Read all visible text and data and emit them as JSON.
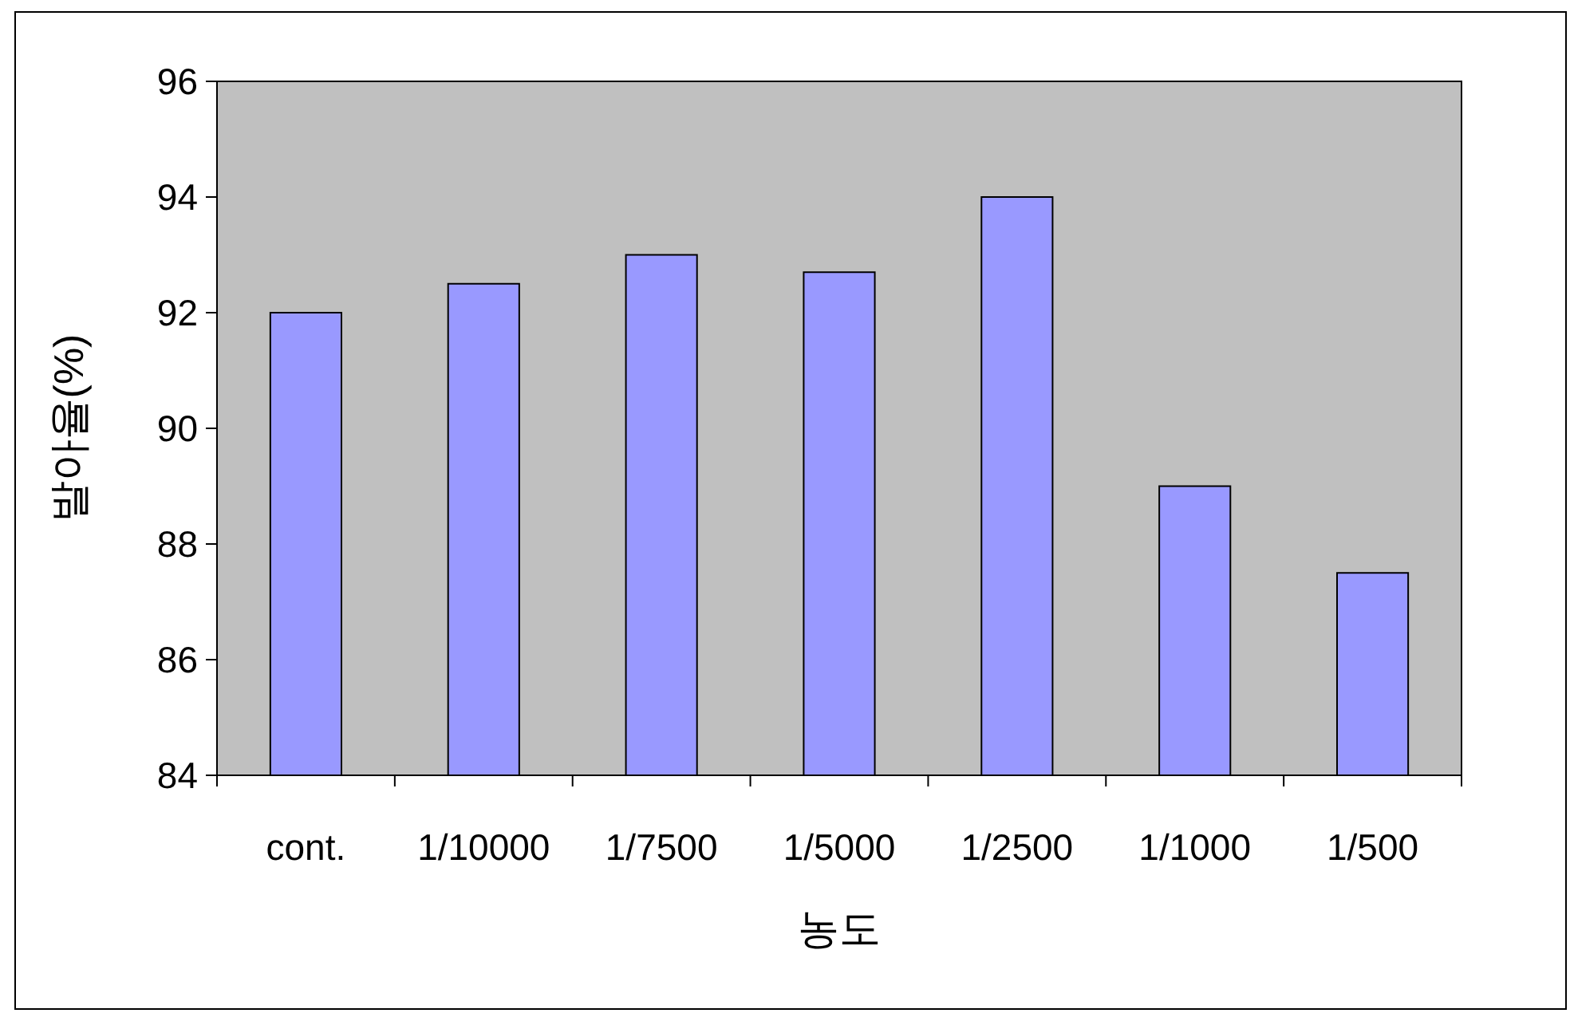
{
  "chart_data": {
    "type": "bar",
    "xlabel": "농도",
    "ylabel": "발아율(%)",
    "categories": [
      "cont.",
      "1/10000",
      "1/7500",
      "1/5000",
      "1/2500",
      "1/1000",
      "1/500"
    ],
    "values": [
      92,
      92.5,
      93,
      92.7,
      94,
      89,
      87.5
    ],
    "color": "#9999ff",
    "ylim": [
      84,
      96
    ],
    "yticks": [
      84,
      86,
      88,
      90,
      92,
      94,
      96
    ],
    "grid": false
  }
}
